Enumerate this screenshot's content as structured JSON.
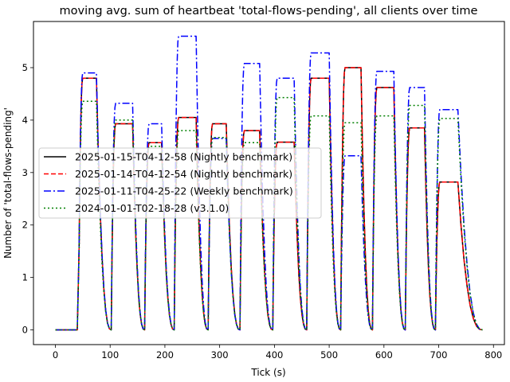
{
  "chart_data": {
    "type": "line",
    "title": "moving avg. sum of heartbeat 'total-flows-pending', all clients over time",
    "xlabel": "Tick (s)",
    "ylabel": "Number of 'total-flows-pending'",
    "xlim": [
      -40,
      820
    ],
    "ylim": [
      -0.28,
      5.88
    ],
    "xticks": [
      0,
      100,
      200,
      300,
      400,
      500,
      600,
      700,
      800
    ],
    "yticks": [
      0,
      1,
      2,
      3,
      4,
      5
    ],
    "grid": false,
    "legend_position": "center-left",
    "cycles": [
      {
        "start": 0,
        "end": 40,
        "rise": 42,
        "fall": 75,
        "zero_at": 102
      },
      {
        "start": 102,
        "end": 102,
        "rise": 102,
        "fall": 141,
        "zero_at": 163
      },
      {
        "start": 163,
        "end": 163,
        "rise": 163,
        "fall": 194,
        "zero_at": 217
      },
      {
        "start": 217,
        "end": 217,
        "rise": 217,
        "fall": 257,
        "zero_at": 279
      },
      {
        "start": 279,
        "end": 279,
        "rise": 279,
        "fall": 312,
        "zero_at": 337
      },
      {
        "start": 337,
        "end": 337,
        "rise": 337,
        "fall": 373,
        "zero_at": 397
      },
      {
        "start": 397,
        "end": 397,
        "rise": 397,
        "fall": 436,
        "zero_at": 459
      },
      {
        "start": 459,
        "end": 459,
        "rise": 459,
        "fall": 500,
        "zero_at": 521
      },
      {
        "start": 521,
        "end": 521,
        "rise": 521,
        "fall": 558,
        "zero_at": 579
      },
      {
        "start": 579,
        "end": 579,
        "rise": 579,
        "fall": 618,
        "zero_at": 639
      },
      {
        "start": 639,
        "end": 639,
        "rise": 639,
        "fall": 674,
        "zero_at": 694
      },
      {
        "start": 694,
        "end": 694,
        "rise": 694,
        "fall": 735,
        "zero_at": 780
      }
    ],
    "series": [
      {
        "name": "2025-01-15-T04-12-58 (Nightly benchmark)",
        "color": "#000000",
        "dash": "solid",
        "plateaus": [
          4.8,
          3.93,
          3.57,
          4.05,
          3.93,
          3.8,
          3.58,
          4.8,
          5.0,
          4.62,
          3.85,
          2.82
        ]
      },
      {
        "name": "2025-01-14-T04-12-54 (Nightly benchmark)",
        "color": "#ff0000",
        "dash": "dashed",
        "plateaus": [
          4.8,
          3.93,
          3.57,
          4.05,
          3.93,
          3.8,
          3.58,
          4.8,
          5.0,
          4.62,
          3.85,
          2.82
        ]
      },
      {
        "name": "2025-01-11-T04-25-22 (Weekly benchmark)",
        "color": "#0000ff",
        "dash": "dashdot",
        "plateaus": [
          4.9,
          4.32,
          3.93,
          5.6,
          3.65,
          5.08,
          4.8,
          5.28,
          3.32,
          4.93,
          4.62,
          4.2
        ]
      },
      {
        "name": "2024-01-01-T02-18-28 (v3.1.0)",
        "color": "#008000",
        "dash": "dotted",
        "plateaus": [
          4.36,
          4.0,
          3.5,
          3.8,
          3.67,
          3.57,
          4.43,
          4.08,
          3.95,
          4.08,
          4.28,
          4.03
        ]
      }
    ]
  }
}
